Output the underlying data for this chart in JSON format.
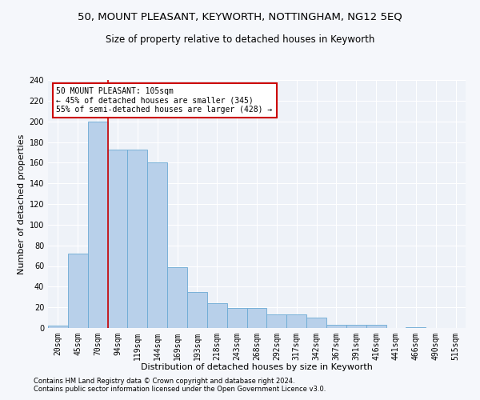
{
  "title1": "50, MOUNT PLEASANT, KEYWORTH, NOTTINGHAM, NG12 5EQ",
  "title2": "Size of property relative to detached houses in Keyworth",
  "xlabel": "Distribution of detached houses by size in Keyworth",
  "ylabel": "Number of detached properties",
  "categories": [
    "20sqm",
    "45sqm",
    "70sqm",
    "94sqm",
    "119sqm",
    "144sqm",
    "169sqm",
    "193sqm",
    "218sqm",
    "243sqm",
    "268sqm",
    "292sqm",
    "317sqm",
    "342sqm",
    "367sqm",
    "391sqm",
    "416sqm",
    "441sqm",
    "466sqm",
    "490sqm",
    "515sqm"
  ],
  "values": [
    2,
    72,
    200,
    173,
    173,
    160,
    59,
    35,
    24,
    19,
    19,
    13,
    13,
    10,
    3,
    3,
    3,
    0,
    1,
    0,
    0
  ],
  "bar_color": "#b8d0ea",
  "bar_edge_color": "#6aaad4",
  "annotation_text": "50 MOUNT PLEASANT: 105sqm\n← 45% of detached houses are smaller (345)\n55% of semi-detached houses are larger (428) →",
  "vline_x_bin": 3,
  "vline_color": "#cc0000",
  "annotation_box_color": "#ffffff",
  "annotation_box_edge": "#cc0000",
  "footer1": "Contains HM Land Registry data © Crown copyright and database right 2024.",
  "footer2": "Contains public sector information licensed under the Open Government Licence v3.0.",
  "ylim": [
    0,
    240
  ],
  "yticks": [
    0,
    20,
    40,
    60,
    80,
    100,
    120,
    140,
    160,
    180,
    200,
    220,
    240
  ],
  "background_color": "#eef2f8",
  "grid_color": "#ffffff",
  "title1_fontsize": 9.5,
  "title2_fontsize": 8.5,
  "tick_fontsize": 7,
  "xlabel_fontsize": 8,
  "ylabel_fontsize": 8,
  "footer_fontsize": 6,
  "annotation_fontsize": 7
}
